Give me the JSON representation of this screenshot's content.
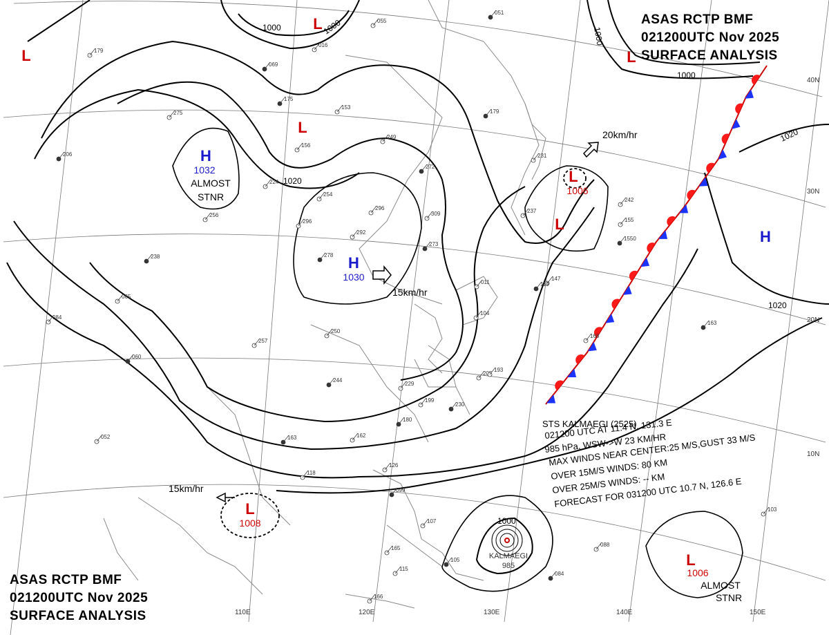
{
  "header_top": {
    "line1": "ASAS     RCTP     BMF",
    "line2": "021200UTC     Nov     2025",
    "line3": "SURFACE  ANALYSIS"
  },
  "header_bottom": {
    "line1": "ASAS     RCTP     BMF",
    "line2": "021200UTC     Nov     2025",
    "line3": "SURFACE  ANALYSIS"
  },
  "colors": {
    "high": "#1a1acc",
    "low": "#cc0000",
    "cold_front": "#1a33ff",
    "warm_front": "#ff1a1a",
    "isobar": "#000000",
    "coast": "#888888",
    "grid": "#666666"
  },
  "pressure_centers": [
    {
      "type": "H",
      "symbol": "H",
      "value": "1032",
      "note": "ALMOST STNR",
      "note_l1": "ALMOST",
      "note_l2": "STNR"
    },
    {
      "type": "H",
      "symbol": "H",
      "value": "1030",
      "motion": "15km/hr"
    },
    {
      "type": "H",
      "symbol": "H",
      "value": ""
    },
    {
      "type": "L",
      "symbol": "L",
      "value": "1006",
      "motion": "20km/hr"
    },
    {
      "type": "L",
      "symbol": "L",
      "value": ""
    },
    {
      "type": "L",
      "symbol": "L",
      "value": ""
    },
    {
      "type": "L",
      "symbol": "L",
      "value": ""
    },
    {
      "type": "L",
      "symbol": "L",
      "value": ""
    },
    {
      "type": "L",
      "symbol": "L",
      "value": "1008",
      "motion": "15km/hr"
    },
    {
      "type": "L",
      "symbol": "L",
      "value": "1006",
      "note": "ALMOST STNR",
      "note_l1": "ALMOST",
      "note_l2": "STNR"
    }
  ],
  "isobar_labels": [
    "1000",
    "1000",
    "1000",
    "1000",
    "1020",
    "1020",
    "1020",
    "1000"
  ],
  "typhoon": {
    "label": "KALMAEGI",
    "pressure": "985"
  },
  "typhoon_info": [
    "STS  KALMAEGI  (2525)",
    "021200 UTC  AT 11.4 N, 131.3 E",
    "985 hPa, WSW->W  23 KM/HR",
    "MAX WINDS NEAR CENTER:25 M/S,GUST 33 M/S",
    "OVER 15M/S WINDS: 80 KM",
    "OVER 25M/S WINDS: -- KM",
    "FORECAST FOR 031200 UTC 10.7 N, 126.6 E"
  ],
  "lat_labels": [
    "40N",
    "30N",
    "20N",
    "10N"
  ],
  "lon_labels": [
    "110E",
    "120E",
    "130E",
    "140E",
    "150E"
  ],
  "stations": [
    "175",
    "153",
    "249",
    "179",
    "296",
    "292",
    "278",
    "254",
    "256",
    "238",
    "065",
    "084",
    "060",
    "052",
    "118",
    "163",
    "257",
    "250",
    "244",
    "229",
    "199",
    "230",
    "205",
    "193",
    "180",
    "162",
    "126",
    "099",
    "107",
    "104",
    "105",
    "115",
    "166",
    "084",
    "088",
    "103",
    "163",
    "168",
    "147",
    "119",
    "231",
    "296",
    "272",
    "224",
    "156",
    "206",
    "179",
    "275",
    "069",
    "016",
    "055",
    "051",
    "237",
    "309",
    "273",
    "242",
    "155",
    "1550",
    "011",
    "165"
  ]
}
